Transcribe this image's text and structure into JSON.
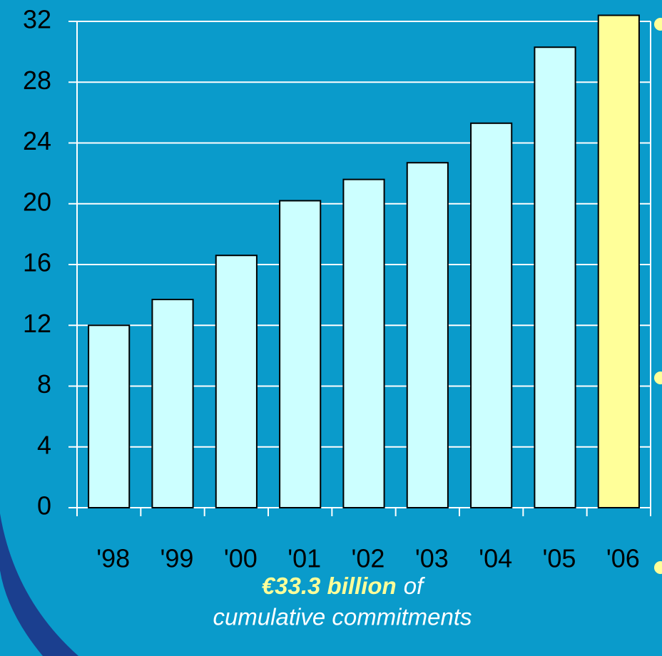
{
  "chart_data": {
    "type": "bar",
    "categories": [
      "'98",
      "'99",
      "'00",
      "'01",
      "'02",
      "'03",
      "'04",
      "'05",
      "'06"
    ],
    "values": [
      12,
      13.7,
      16.6,
      20.2,
      21.6,
      22.7,
      25.3,
      30.3,
      32.4
    ],
    "colors": [
      "#ccffff",
      "#ccffff",
      "#ccffff",
      "#ccffff",
      "#ccffff",
      "#ccffff",
      "#ccffff",
      "#ccffff",
      "#ffff99"
    ],
    "ylim": [
      0,
      32
    ],
    "yticks": [
      0,
      4,
      8,
      12,
      16,
      20,
      24,
      28,
      32
    ],
    "grid": true,
    "annotation": [
      "€33.3 billion",
      "of",
      "cumulative commitments"
    ]
  }
}
